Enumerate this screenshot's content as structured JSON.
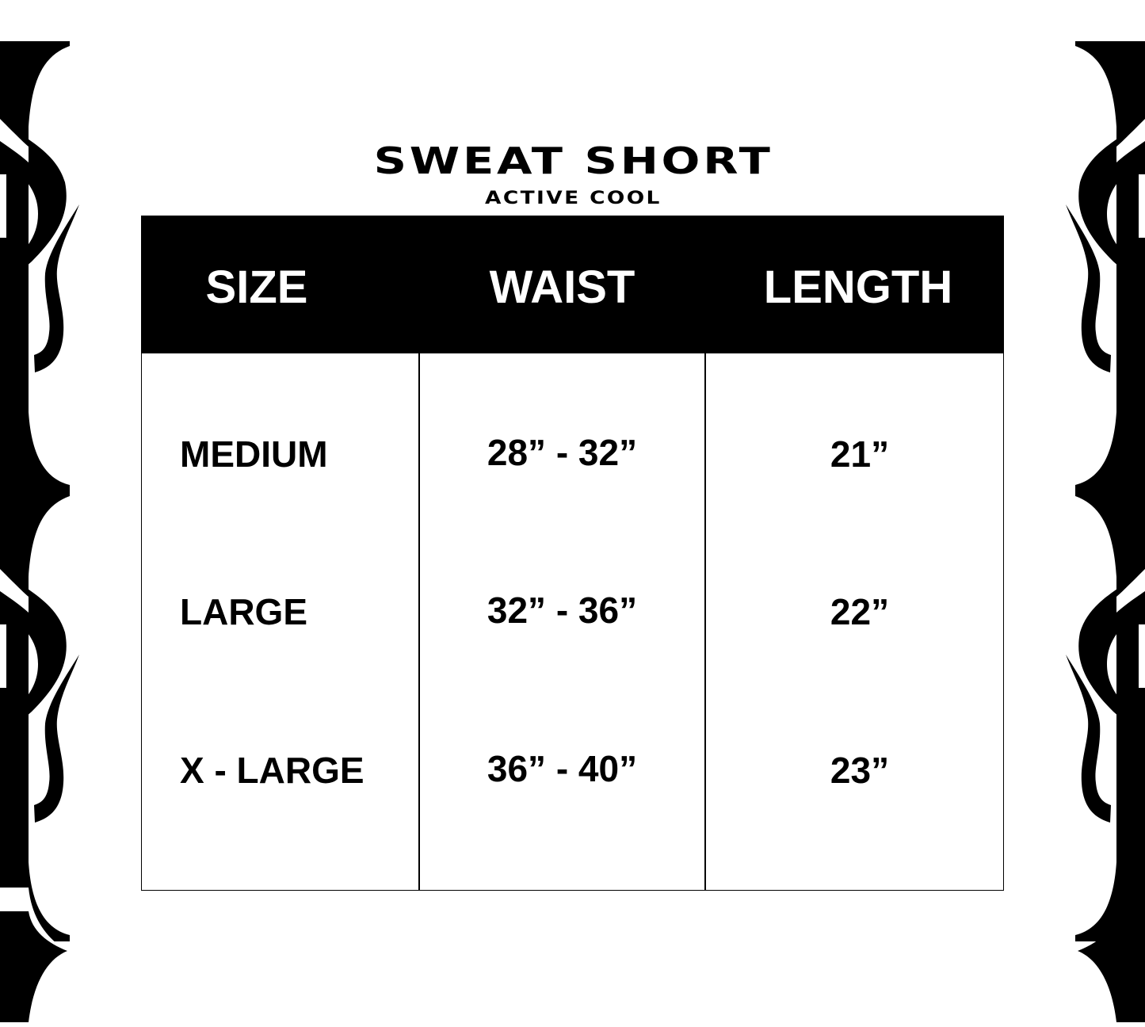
{
  "title": "SWEAT SHORT",
  "subtitle": "ACTIVE COOL",
  "table": {
    "headers": [
      "SIZE",
      "WAIST",
      "LENGTH"
    ],
    "rows": [
      {
        "size": "MEDIUM",
        "waist": "28” - 32”",
        "length": "21”"
      },
      {
        "size": "LARGE",
        "waist": "32” - 36”",
        "length": "22”"
      },
      {
        "size": "X - LARGE",
        "waist": "36” - 40”",
        "length": "23”"
      }
    ]
  },
  "colors": {
    "ink": "#000000",
    "background": "#ffffff"
  }
}
